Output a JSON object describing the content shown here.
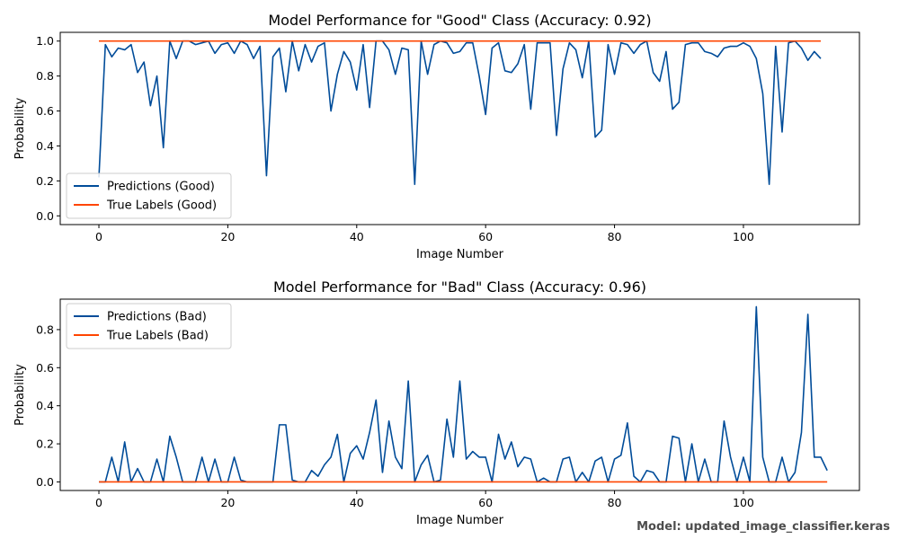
{
  "footer": "Model: updated_image_classifier.keras",
  "colors": {
    "prediction": "#004c99",
    "true_label": "#ff4500",
    "axis": "#000000"
  },
  "chart_data": [
    {
      "type": "line",
      "title": "Model Performance for \"Good\" Class (Accuracy: 0.92)",
      "xlabel": "Image Number",
      "ylabel": "Probability",
      "xlim": [
        -6,
        118
      ],
      "ylim": [
        -0.05,
        1.05
      ],
      "xticks": [
        0,
        20,
        40,
        60,
        80,
        100
      ],
      "yticks": [
        0.0,
        0.2,
        0.4,
        0.6,
        0.8,
        1.0
      ],
      "tick_labels_y": [
        "0.0",
        "0.2",
        "0.4",
        "0.6",
        "0.8",
        "1.0"
      ],
      "legend_position": "lower-left",
      "series": [
        {
          "name": "Predictions (Good)",
          "color": "#004c99",
          "values": [
            0.22,
            0.98,
            0.91,
            0.96,
            0.95,
            0.98,
            0.82,
            0.88,
            0.63,
            0.8,
            0.39,
            1.0,
            0.9,
            1.0,
            1.0,
            0.98,
            0.99,
            1.0,
            0.93,
            0.98,
            0.99,
            0.93,
            1.0,
            0.98,
            0.9,
            0.97,
            0.23,
            0.91,
            0.96,
            0.71,
            1.0,
            0.83,
            0.98,
            0.88,
            0.97,
            0.99,
            0.6,
            0.81,
            0.94,
            0.88,
            0.72,
            0.98,
            0.62,
            1.0,
            1.0,
            0.95,
            0.81,
            0.96,
            0.95,
            0.18,
            1.0,
            0.81,
            0.98,
            1.0,
            0.99,
            0.93,
            0.94,
            0.99,
            0.99,
            0.8,
            0.58,
            0.96,
            0.99,
            0.83,
            0.82,
            0.87,
            0.98,
            0.61,
            0.99,
            0.99,
            0.99,
            0.46,
            0.84,
            0.99,
            0.95,
            0.79,
            1.0,
            0.45,
            0.49,
            0.98,
            0.81,
            0.99,
            0.98,
            0.93,
            0.98,
            1.0,
            0.82,
            0.77,
            0.94,
            0.61,
            0.65,
            0.98,
            0.99,
            0.99,
            0.94,
            0.93,
            0.91,
            0.96,
            0.97,
            0.97,
            0.99,
            0.97,
            0.9,
            0.7,
            0.18,
            0.97,
            0.48,
            0.99,
            1.0,
            0.96,
            0.89,
            0.94,
            0.9
          ]
        },
        {
          "name": "True Labels (Good)",
          "color": "#ff4500",
          "values": [
            1,
            1,
            1,
            1,
            1,
            1,
            1,
            1,
            1,
            1,
            1,
            1,
            1,
            1,
            1,
            1,
            1,
            1,
            1,
            1,
            1,
            1,
            1,
            1,
            1,
            1,
            1,
            1,
            1,
            1,
            1,
            1,
            1,
            1,
            1,
            1,
            1,
            1,
            1,
            1,
            1,
            1,
            1,
            1,
            1,
            1,
            1,
            1,
            1,
            1,
            1,
            1,
            1,
            1,
            1,
            1,
            1,
            1,
            1,
            1,
            1,
            1,
            1,
            1,
            1,
            1,
            1,
            1,
            1,
            1,
            1,
            1,
            1,
            1,
            1,
            1,
            1,
            1,
            1,
            1,
            1,
            1,
            1,
            1,
            1,
            1,
            1,
            1,
            1,
            1,
            1,
            1,
            1,
            1,
            1,
            1,
            1,
            1,
            1,
            1,
            1,
            1,
            1,
            1,
            1,
            1,
            1,
            1,
            1,
            1,
            1,
            1,
            1
          ]
        }
      ]
    },
    {
      "type": "line",
      "title": "Model Performance for \"Bad\" Class (Accuracy: 0.96)",
      "xlabel": "Image Number",
      "ylabel": "Probability",
      "xlim": [
        -6,
        118
      ],
      "ylim": [
        -0.045,
        0.96
      ],
      "xticks": [
        0,
        20,
        40,
        60,
        80,
        100
      ],
      "yticks": [
        0.0,
        0.2,
        0.4,
        0.6,
        0.8
      ],
      "tick_labels_y": [
        "0.0",
        "0.2",
        "0.4",
        "0.6",
        "0.8"
      ],
      "legend_position": "upper-left",
      "series": [
        {
          "name": "Predictions (Bad)",
          "color": "#004c99",
          "values": [
            0.0,
            0.0,
            0.13,
            0.0,
            0.21,
            0.0,
            0.07,
            0.0,
            0.0,
            0.12,
            0.0,
            0.24,
            0.13,
            0.0,
            0.0,
            0.0,
            0.13,
            0.0,
            0.12,
            0.0,
            0.0,
            0.13,
            0.01,
            0.0,
            0.0,
            0.0,
            0.0,
            0.0,
            0.3,
            0.3,
            0.01,
            0.0,
            0.0,
            0.06,
            0.03,
            0.09,
            0.13,
            0.25,
            0.0,
            0.15,
            0.19,
            0.12,
            0.26,
            0.43,
            0.05,
            0.32,
            0.13,
            0.07,
            0.53,
            0.0,
            0.09,
            0.14,
            0.0,
            0.01,
            0.33,
            0.13,
            0.53,
            0.12,
            0.16,
            0.13,
            0.13,
            0.0,
            0.25,
            0.12,
            0.21,
            0.08,
            0.13,
            0.12,
            0.0,
            0.02,
            0.0,
            0.0,
            0.12,
            0.13,
            0.0,
            0.05,
            0.0,
            0.11,
            0.13,
            0.0,
            0.12,
            0.14,
            0.31,
            0.03,
            0.0,
            0.06,
            0.05,
            0.0,
            0.0,
            0.24,
            0.23,
            0.0,
            0.2,
            0.0,
            0.12,
            0.0,
            0.0,
            0.32,
            0.13,
            0.0,
            0.13,
            0.0,
            0.92,
            0.13,
            0.0,
            0.0,
            0.13,
            0.0,
            0.05,
            0.26,
            0.88,
            0.13,
            0.13,
            0.06
          ]
        },
        {
          "name": "True Labels (Bad)",
          "color": "#ff4500",
          "values": [
            0,
            0,
            0,
            0,
            0,
            0,
            0,
            0,
            0,
            0,
            0,
            0,
            0,
            0,
            0,
            0,
            0,
            0,
            0,
            0,
            0,
            0,
            0,
            0,
            0,
            0,
            0,
            0,
            0,
            0,
            0,
            0,
            0,
            0,
            0,
            0,
            0,
            0,
            0,
            0,
            0,
            0,
            0,
            0,
            0,
            0,
            0,
            0,
            0,
            0,
            0,
            0,
            0,
            0,
            0,
            0,
            0,
            0,
            0,
            0,
            0,
            0,
            0,
            0,
            0,
            0,
            0,
            0,
            0,
            0,
            0,
            0,
            0,
            0,
            0,
            0,
            0,
            0,
            0,
            0,
            0,
            0,
            0,
            0,
            0,
            0,
            0,
            0,
            0,
            0,
            0,
            0,
            0,
            0,
            0,
            0,
            0,
            0,
            0,
            0,
            0,
            0,
            0,
            0,
            0,
            0,
            0,
            0,
            0,
            0,
            0,
            0,
            0,
            0
          ]
        }
      ]
    }
  ]
}
